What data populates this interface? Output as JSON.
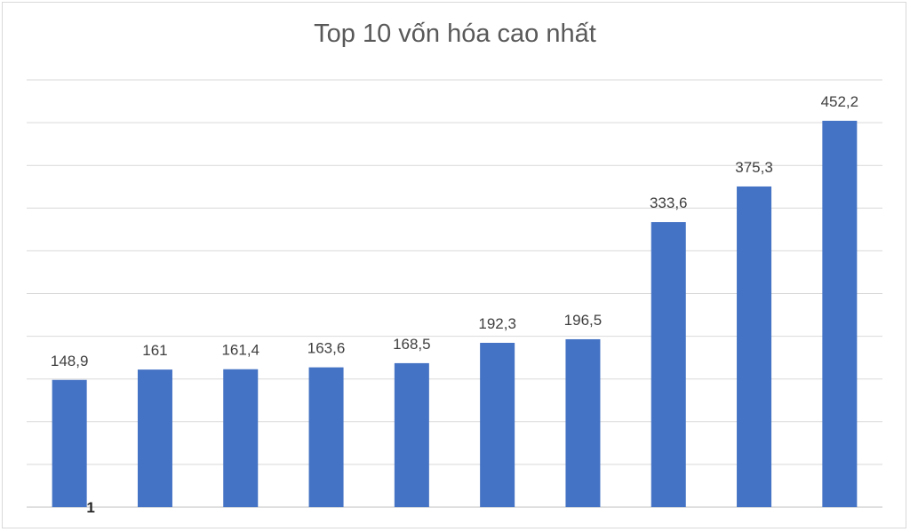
{
  "chart_data": {
    "type": "bar",
    "title": "Top 10 vốn hóa cao nhất",
    "xlabel": "",
    "ylabel": "",
    "categories": [
      "1",
      "",
      "",
      "",
      "",
      "",
      "",
      "",
      "",
      ""
    ],
    "values": [
      148.9,
      161,
      161.4,
      163.6,
      168.5,
      192.3,
      196.5,
      333.6,
      375.3,
      452.2
    ],
    "data_labels": [
      "148,9",
      "161",
      "161,4",
      "163,6",
      "168,5",
      "192,3",
      "196,5",
      "333,6",
      "375,3",
      "452,2"
    ],
    "ylim": [
      0,
      500
    ],
    "grid": true,
    "legend": "none",
    "bar_color": "#4472c4",
    "grid_color": "#d9d9d9"
  }
}
